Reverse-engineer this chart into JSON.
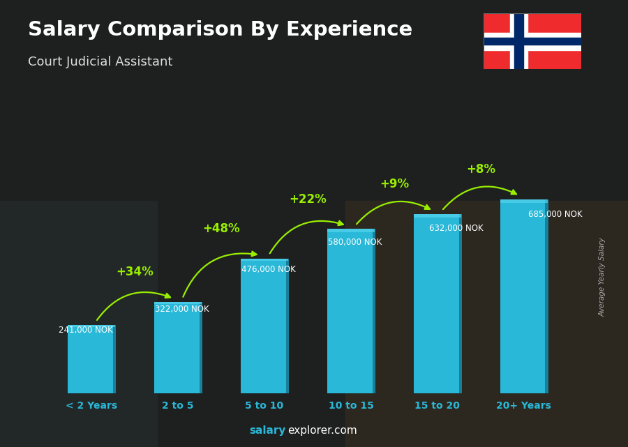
{
  "title": "Salary Comparison By Experience",
  "subtitle": "Court Judicial Assistant",
  "ylabel": "Average Yearly Salary",
  "categories": [
    "< 2 Years",
    "2 to 5",
    "5 to 10",
    "10 to 15",
    "15 to 20",
    "20+ Years"
  ],
  "values": [
    241000,
    322000,
    476000,
    580000,
    632000,
    685000
  ],
  "salary_labels": [
    "241,000 NOK",
    "322,000 NOK",
    "476,000 NOK",
    "580,000 NOK",
    "632,000 NOK",
    "685,000 NOK"
  ],
  "pct_labels": [
    "+34%",
    "+48%",
    "+22%",
    "+9%",
    "+8%"
  ],
  "bar_color_face": "#29b8d8",
  "bar_color_side": "#1a8099",
  "bar_color_top": "#55d4ee",
  "background_color": "#2a2a2a",
  "title_color": "#ffffff",
  "subtitle_color": "#dddddd",
  "salary_label_color": "#ffffff",
  "pct_color": "#99ee00",
  "xtick_color": "#29b8d8",
  "footer_salary_color": "#29b8d8",
  "footer_rest_color": "#ffffff",
  "ylabel_color": "#aaaaaa",
  "ylim": [
    0,
    820000
  ],
  "bar_width": 0.55,
  "flag_red": "#EF2B2D",
  "flag_blue": "#002868",
  "flag_white": "#FFFFFF"
}
